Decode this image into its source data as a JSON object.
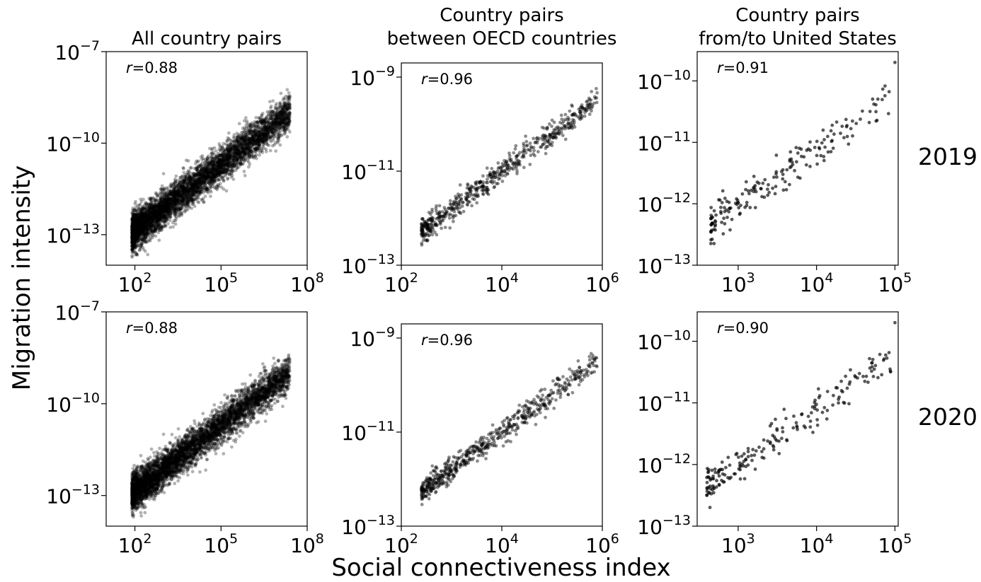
{
  "figure": {
    "y_axis_label": "Migration intensity",
    "x_axis_label": "Social connectiveness index",
    "row_labels": [
      "2019",
      "2020"
    ],
    "column_titles": [
      [
        "All country pairs"
      ],
      [
        "Country pairs",
        "between OECD countries"
      ],
      [
        "Country pairs",
        "from/to United States"
      ]
    ]
  },
  "chart_data": [
    {
      "type": "scatter",
      "panel": "All country pairs, 2019",
      "title": "All country pairs",
      "xlabel": "",
      "ylabel": "",
      "log_x": true,
      "log_y": true,
      "xlim": [
        10,
        100000000
      ],
      "ylim": [
        1e-14,
        1e-07
      ],
      "xticks": [
        {
          "v": 2,
          "label": "10",
          "exp": "2"
        },
        {
          "v": 5,
          "label": "10",
          "exp": "5"
        },
        {
          "v": 8,
          "label": "10",
          "exp": "8"
        }
      ],
      "yticks": [
        {
          "v": -13,
          "label": "10",
          "exp": "−13"
        },
        {
          "v": -10,
          "label": "10",
          "exp": "−10"
        },
        {
          "v": -7,
          "label": "10",
          "exp": "−7"
        }
      ],
      "annotation": {
        "var": "r",
        "text": "=0.88"
      },
      "point_color": "#000000",
      "point_opacity": 0.3,
      "points_generated": {
        "count": 5000,
        "x_log_range": [
          1.9,
          7.4
        ],
        "slope": 0.72,
        "intercept_log": -14.3,
        "scatter_log": 0.5
      },
      "points": [
        [
          1000,
          1e-11
        ]
      ]
    },
    {
      "type": "scatter",
      "panel": "Country pairs between OECD countries, 2019",
      "title": "Country pairs between OECD countries",
      "xlabel": "",
      "ylabel": "",
      "log_x": true,
      "log_y": true,
      "xlim": [
        100,
        1000000
      ],
      "ylim": [
        1e-13,
        2e-09
      ],
      "xticks": [
        {
          "v": 2,
          "label": "10",
          "exp": "2"
        },
        {
          "v": 4,
          "label": "10",
          "exp": "4"
        },
        {
          "v": 6,
          "label": "10",
          "exp": "6"
        }
      ],
      "yticks": [
        {
          "v": -13,
          "label": "10",
          "exp": "−13"
        },
        {
          "v": -11,
          "label": "10",
          "exp": "−11"
        },
        {
          "v": -9,
          "label": "10",
          "exp": "−9"
        }
      ],
      "annotation": {
        "var": "r",
        "text": "=0.96"
      },
      "point_color": "#000000",
      "point_opacity": 0.45,
      "points_generated": {
        "count": 600,
        "x_log_range": [
          2.4,
          5.9
        ],
        "slope": 0.8,
        "intercept_log": -14.2,
        "scatter_log": 0.22
      },
      "points": [
        [
          10000,
          1e-11
        ]
      ]
    },
    {
      "type": "scatter",
      "panel": "Country pairs from/to United States, 2019",
      "title": "Country pairs from/to United States",
      "xlabel": "",
      "ylabel": "",
      "log_x": true,
      "log_y": true,
      "xlim": [
        300,
        110000
      ],
      "ylim": [
        1e-13,
        3e-10
      ],
      "xticks": [
        {
          "v": 3,
          "label": "10",
          "exp": "3"
        },
        {
          "v": 4,
          "label": "10",
          "exp": "4"
        },
        {
          "v": 5,
          "label": "10",
          "exp": "5"
        }
      ],
      "yticks": [
        {
          "v": -13,
          "label": "10",
          "exp": "−13"
        },
        {
          "v": -12,
          "label": "10",
          "exp": "−12"
        },
        {
          "v": -11,
          "label": "10",
          "exp": "−11"
        },
        {
          "v": -10,
          "label": "10",
          "exp": "−10"
        }
      ],
      "annotation": {
        "var": "r",
        "text": "=0.91"
      },
      "point_color": "#000000",
      "point_opacity": 0.65,
      "points_generated": {
        "count": 185,
        "x_log_range": [
          2.65,
          4.95
        ],
        "slope": 0.88,
        "intercept_log": -14.65,
        "scatter_log": 0.25
      },
      "points": [
        [
          100000,
          2e-10
        ]
      ]
    },
    {
      "type": "scatter",
      "panel": "All country pairs, 2020",
      "title": "",
      "xlabel": "",
      "ylabel": "",
      "log_x": true,
      "log_y": true,
      "xlim": [
        10,
        100000000
      ],
      "ylim": [
        1e-14,
        1e-07
      ],
      "xticks": [
        {
          "v": 2,
          "label": "10",
          "exp": "2"
        },
        {
          "v": 5,
          "label": "10",
          "exp": "5"
        },
        {
          "v": 8,
          "label": "10",
          "exp": "8"
        }
      ],
      "yticks": [
        {
          "v": -13,
          "label": "10",
          "exp": "−13"
        },
        {
          "v": -10,
          "label": "10",
          "exp": "−10"
        },
        {
          "v": -7,
          "label": "10",
          "exp": "−7"
        }
      ],
      "annotation": {
        "var": "r",
        "text": "=0.88"
      },
      "point_color": "#000000",
      "point_opacity": 0.3,
      "points_generated": {
        "count": 5000,
        "x_log_range": [
          1.9,
          7.4
        ],
        "slope": 0.72,
        "intercept_log": -14.3,
        "scatter_log": 0.5
      },
      "points": [
        [
          1000,
          1e-11
        ]
      ]
    },
    {
      "type": "scatter",
      "panel": "Country pairs between OECD countries, 2020",
      "title": "",
      "xlabel": "",
      "ylabel": "",
      "log_x": true,
      "log_y": true,
      "xlim": [
        100,
        1000000
      ],
      "ylim": [
        1e-13,
        2e-09
      ],
      "xticks": [
        {
          "v": 2,
          "label": "10",
          "exp": "2"
        },
        {
          "v": 4,
          "label": "10",
          "exp": "4"
        },
        {
          "v": 6,
          "label": "10",
          "exp": "6"
        }
      ],
      "yticks": [
        {
          "v": -13,
          "label": "10",
          "exp": "−13"
        },
        {
          "v": -11,
          "label": "10",
          "exp": "−11"
        },
        {
          "v": -9,
          "label": "10",
          "exp": "−9"
        }
      ],
      "annotation": {
        "var": "r",
        "text": "=0.96"
      },
      "point_color": "#000000",
      "point_opacity": 0.45,
      "points_generated": {
        "count": 600,
        "x_log_range": [
          2.4,
          5.9
        ],
        "slope": 0.8,
        "intercept_log": -14.2,
        "scatter_log": 0.22
      },
      "points": [
        [
          10000,
          1e-11
        ]
      ]
    },
    {
      "type": "scatter",
      "panel": "Country pairs from/to United States, 2020",
      "title": "",
      "xlabel": "",
      "ylabel": "",
      "log_x": true,
      "log_y": true,
      "xlim": [
        300,
        110000
      ],
      "ylim": [
        1e-13,
        3e-10
      ],
      "xticks": [
        {
          "v": 3,
          "label": "10",
          "exp": "3"
        },
        {
          "v": 4,
          "label": "10",
          "exp": "4"
        },
        {
          "v": 5,
          "label": "10",
          "exp": "5"
        }
      ],
      "yticks": [
        {
          "v": -13,
          "label": "10",
          "exp": "−13"
        },
        {
          "v": -12,
          "label": "10",
          "exp": "−12"
        },
        {
          "v": -11,
          "label": "10",
          "exp": "−11"
        },
        {
          "v": -10,
          "label": "10",
          "exp": "−10"
        }
      ],
      "annotation": {
        "var": "r",
        "text": "=0.90"
      },
      "point_color": "#000000",
      "point_opacity": 0.65,
      "points_generated": {
        "count": 195,
        "x_log_range": [
          2.6,
          4.95
        ],
        "slope": 0.88,
        "intercept_log": -14.65,
        "scatter_log": 0.25
      },
      "points": [
        [
          100000,
          2e-10
        ]
      ]
    }
  ]
}
